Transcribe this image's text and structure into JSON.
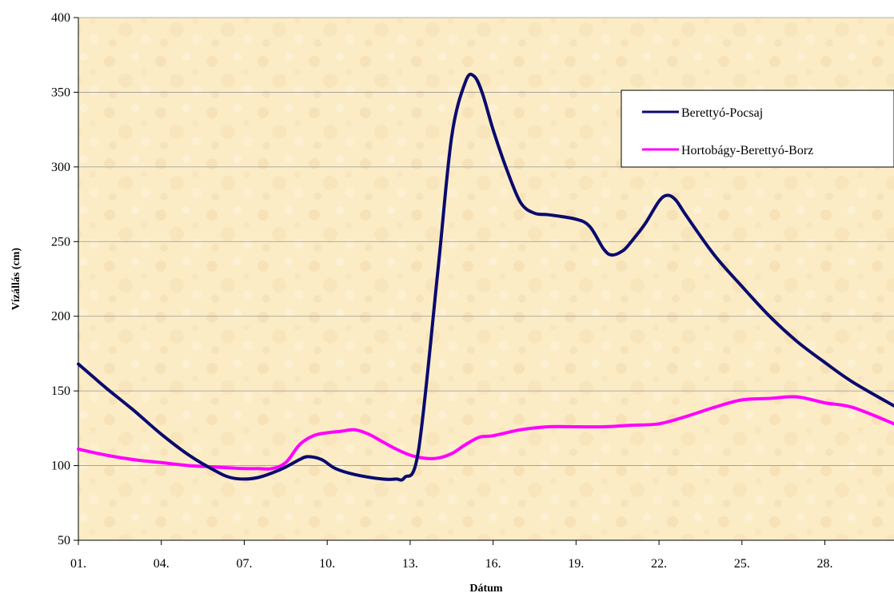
{
  "chart_data": {
    "type": "line",
    "title": "",
    "xlabel": "Dátum",
    "ylabel": "Vízállás (cm)",
    "ylim": [
      50,
      400
    ],
    "yticks": [
      "50",
      "100",
      "150",
      "200",
      "250",
      "300",
      "350",
      "400"
    ],
    "xlim": [
      1,
      30.5
    ],
    "xticks": [
      {
        "day": 1,
        "label": "01."
      },
      {
        "day": 4,
        "label": "04."
      },
      {
        "day": 7,
        "label": "07."
      },
      {
        "day": 10,
        "label": "10."
      },
      {
        "day": 13,
        "label": "13."
      },
      {
        "day": 16,
        "label": "16."
      },
      {
        "day": 19,
        "label": "19."
      },
      {
        "day": 22,
        "label": "22."
      },
      {
        "day": 25,
        "label": "25."
      },
      {
        "day": 28,
        "label": "28."
      }
    ],
    "grid": "horizontal",
    "legend": "top-right",
    "background_color": "#fbecc6",
    "series": [
      {
        "name": "Berettyó-Pocsaj",
        "color": "#0a0a6e",
        "x": [
          1,
          1.5,
          2,
          3,
          4,
          5,
          6,
          6.5,
          7,
          7.5,
          8,
          8.5,
          9,
          9.3,
          9.8,
          10.3,
          11,
          12,
          12.5,
          12.8,
          13.3,
          14,
          14.5,
          15,
          15.3,
          15.6,
          16,
          16.5,
          17,
          17.5,
          18,
          19,
          19.5,
          20,
          20.3,
          20.7,
          21,
          21.5,
          22,
          22.3,
          22.6,
          23,
          24,
          25,
          26,
          27,
          28,
          29,
          30.5
        ],
        "y": [
          168,
          160,
          152,
          137,
          121,
          107,
          96,
          92,
          91,
          92,
          95,
          99,
          104,
          106,
          104,
          98,
          94,
          91,
          91,
          92,
          110,
          230,
          320,
          357,
          361,
          350,
          325,
          298,
          276,
          269,
          268,
          265,
          260,
          245,
          241,
          244,
          250,
          262,
          277,
          281,
          278,
          267,
          241,
          220,
          200,
          183,
          169,
          156,
          140
        ]
      },
      {
        "name": "Hortobágy-Berettyó-Borz",
        "color": "#ff00ff",
        "x": [
          1,
          2,
          3,
          4,
          5,
          6,
          7,
          7.5,
          8,
          8.5,
          9,
          9.5,
          10,
          10.5,
          11,
          11.5,
          12,
          12.5,
          13,
          13.5,
          14,
          14.5,
          15,
          15.5,
          16,
          17,
          18,
          19,
          20,
          21,
          22,
          23,
          24,
          25,
          26,
          27,
          28,
          29,
          30.5
        ],
        "y": [
          111,
          107,
          104,
          102,
          100,
          99,
          98,
          98,
          98,
          102,
          114,
          120,
          122,
          123,
          124,
          121,
          116,
          111,
          107,
          105,
          105,
          108,
          114,
          119,
          120,
          124,
          126,
          126,
          126,
          127,
          128,
          133,
          139,
          144,
          145,
          146,
          142,
          139,
          128
        ]
      }
    ]
  }
}
